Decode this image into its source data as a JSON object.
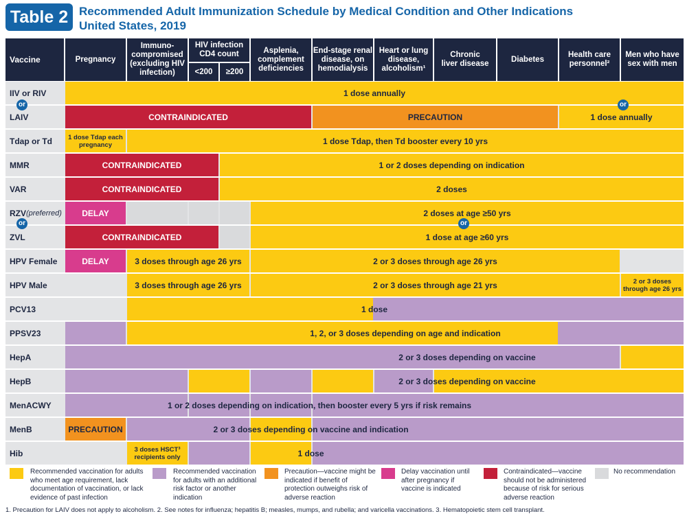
{
  "header": {
    "badge": "Table 2",
    "title_line1": "Recommended Adult Immunization Schedule by Medical Condition and Other Indications",
    "title_line2": "United States, 2019"
  },
  "columns": {
    "vaccine": "Vaccine",
    "pregnancy": "Pregnancy",
    "immuno": "Immuno-compromised (excluding HIV infection)",
    "hiv": "HIV infection CD4 count",
    "hiv_lt": "<200",
    "hiv_ge": "≥200",
    "asplenia": "Asplenia, complement deficiencies",
    "renal": "End-stage renal disease, on hemodialysis",
    "heart": "Heart or lung disease, alcoholism¹",
    "liver": "Chronic liver disease",
    "diabetes": "Diabetes",
    "hcp": "Health care personnel²",
    "msm": "Men who have sex with men"
  },
  "colors": {
    "recommended": "#fcca12",
    "additional_risk": "#b99bc9",
    "precaution": "#f2921f",
    "delay": "#d83c8d",
    "contraindicated": "#c3203a",
    "no_recommendation": "#d9dadc"
  },
  "vaccines": {
    "iiv": "IIV or RIV",
    "laiv": "LAIV",
    "tdap": "Tdap or Td",
    "mmr": "MMR",
    "var": "VAR",
    "rzv": "RZV",
    "rzv_note": "(preferred)",
    "zvl": "ZVL",
    "hpvf": "HPV Female",
    "hpvm": "HPV Male",
    "pcv13": "PCV13",
    "ppsv23": "PPSV23",
    "hepa": "HepA",
    "hepb": "HepB",
    "menacwy": "MenACWY",
    "menb": "MenB",
    "hib": "Hib"
  },
  "cells": {
    "or": "or",
    "iiv_all": "1 dose annually",
    "laiv_contra": "CONTRAINDICATED",
    "laiv_prec": "PRECAUTION",
    "laiv_hcp": "1 dose annually",
    "tdap_preg": "1 dose Tdap each pregnancy",
    "tdap_rest": "1 dose Tdap, then Td booster every 10 yrs",
    "mmr_contra": "CONTRAINDICATED",
    "mmr_rest": "1 or 2 doses depending on indication",
    "var_contra": "CONTRAINDICATED",
    "var_rest": "2 doses",
    "rzv_delay": "DELAY",
    "rzv_rest": "2 doses at age ≥50 yrs",
    "zvl_contra": "CONTRAINDICATED",
    "zvl_rest": "1 dose at age ≥60 yrs",
    "hpvf_delay": "DELAY",
    "hpvf_immuno": "3 doses through age 26 yrs",
    "hpvf_rest": "2 or 3 doses through age 26 yrs",
    "hpvm_immuno": "3 doses through age 26 yrs",
    "hpvm_rest": "2 or 3 doses through age 21 yrs",
    "hpvm_msm": "2 or 3 doses through age 26 yrs",
    "pcv13": "1 dose",
    "ppsv23": "1, 2, or 3 doses depending on age and indication",
    "hepa": "2 or 3 doses depending on vaccine",
    "hepb": "2 or 3 doses depending on vaccine",
    "menacwy": "1 or 2 doses depending on indication, then booster every 5 yrs if risk remains",
    "menb_prec": "PRECAUTION",
    "menb_rest": "2 or 3 doses depending on vaccine and indication",
    "hib_immuno": "3 doses HSCT³ recipients only",
    "hib_rest": "1 dose"
  },
  "legend": {
    "recommended": "Recommended vaccination for adults who meet age requirement, lack documentation of vaccination, or lack evidence of past infection",
    "additional": "Recommended vaccination for adults with an additional risk factor or another indication",
    "precaution": "Precaution—vaccine might be indicated if benefit of protection outweighs risk of adverse reaction",
    "delay": "Delay vaccination until after pregnancy if vaccine is indicated",
    "contraindicated": "Contraindicated—vaccine should not be administered because of risk for serious adverse reaction",
    "none": "No recommendation"
  },
  "footnote": "1. Precaution for LAIV does not apply to alcoholism. 2. See notes for influenza; hepatitis B; measles, mumps, and rubella; and varicella vaccinations. 3. Hematopoietic stem cell transplant."
}
